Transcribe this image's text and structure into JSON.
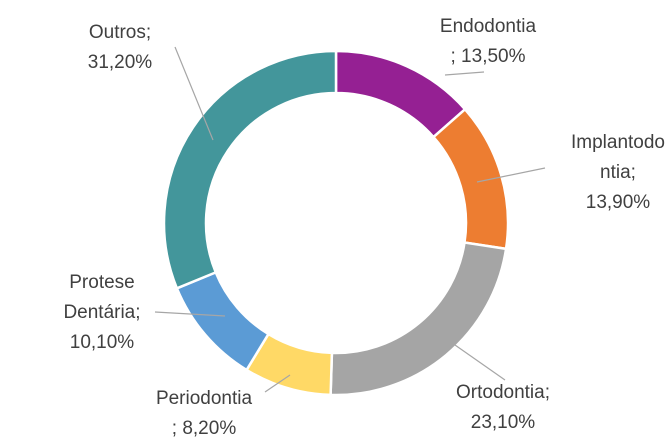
{
  "chart_data": {
    "type": "pie",
    "title": "",
    "slices": [
      {
        "name": "Endodontia",
        "value": 13.5,
        "label_lines": [
          "Endodontia",
          "; 13,50%"
        ],
        "color": "#952093"
      },
      {
        "name": "Implantodontia",
        "value": 13.9,
        "label_lines": [
          "Implantodo",
          "ntia;",
          "13,90%"
        ],
        "color": "#ed7d31"
      },
      {
        "name": "Ortodontia",
        "value": 23.1,
        "label_lines": [
          "Ortodontia;",
          "23,10%"
        ],
        "color": "#a5a5a5"
      },
      {
        "name": "Periodontia",
        "value": 8.2,
        "label_lines": [
          "Periodontia",
          "; 8,20%"
        ],
        "color": "#ffd966"
      },
      {
        "name": "Protese Dentária",
        "value": 10.1,
        "label_lines": [
          "Protese",
          "Dentária;",
          "10,10%"
        ],
        "color": "#5b9bd5"
      },
      {
        "name": "Outros",
        "value": 31.2,
        "label_lines": [
          "Outros;",
          "31,20%"
        ],
        "color": "#43969b"
      }
    ],
    "legend": "none",
    "donut": true
  }
}
